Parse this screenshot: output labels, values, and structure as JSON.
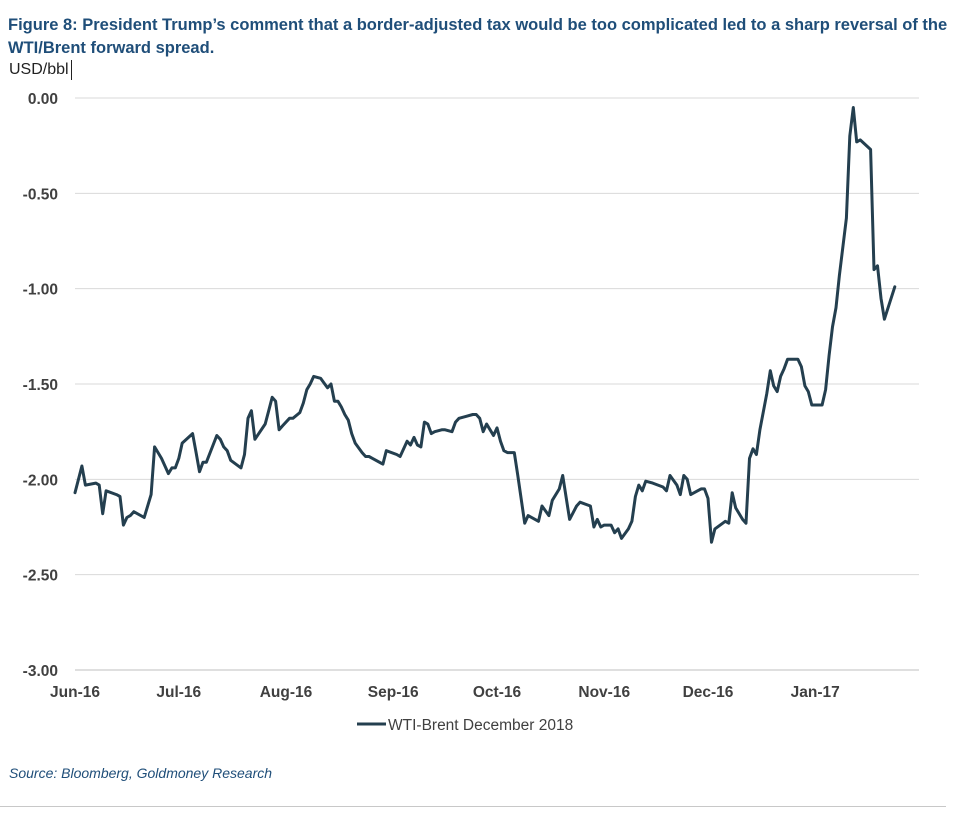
{
  "figure": {
    "title": "Figure 8: President Trump’s comment that a border-adjusted tax would be too complicated led to a sharp reversal of the WTI/Brent forward spread.",
    "source": "Source: Bloomberg, Goldmoney Research"
  },
  "chart_data": {
    "type": "line",
    "ylabel": "USD/bbl",
    "ylim": [
      -3.0,
      0.0
    ],
    "yticks": [
      "0.00",
      "-0.50",
      "-1.00",
      "-1.50",
      "-2.00",
      "-2.50",
      "-3.00"
    ],
    "ytick_values": [
      0.0,
      -0.5,
      -1.0,
      -1.5,
      -2.0,
      -2.5,
      -3.0
    ],
    "xlim": [
      "2016-06-01",
      "2017-01-31"
    ],
    "xticks": [
      "Jun-16",
      "Jul-16",
      "Aug-16",
      "Sep-16",
      "Oct-16",
      "Nov-16",
      "Dec-16",
      "Jan-17"
    ],
    "xtick_dates": [
      "2016-06-01",
      "2016-07-01",
      "2016-08-01",
      "2016-09-01",
      "2016-10-01",
      "2016-11-01",
      "2016-12-01",
      "2017-01-01"
    ],
    "grid": "horizontal",
    "legend": "bottom-center",
    "color": "#243f4f",
    "series": [
      {
        "name": "WTI-Brent December 2018",
        "points": [
          [
            "2016-06-01",
            -2.07
          ],
          [
            "2016-06-03",
            -1.93
          ],
          [
            "2016-06-04",
            -2.03
          ],
          [
            "2016-06-07",
            -2.02
          ],
          [
            "2016-06-08",
            -2.03
          ],
          [
            "2016-06-09",
            -2.18
          ],
          [
            "2016-06-10",
            -2.06
          ],
          [
            "2016-06-13",
            -2.08
          ],
          [
            "2016-06-14",
            -2.09
          ],
          [
            "2016-06-15",
            -2.24
          ],
          [
            "2016-06-16",
            -2.2
          ],
          [
            "2016-06-17",
            -2.19
          ],
          [
            "2016-06-18",
            -2.17
          ],
          [
            "2016-06-21",
            -2.2
          ],
          [
            "2016-06-23",
            -2.08
          ],
          [
            "2016-06-24",
            -1.83
          ],
          [
            "2016-06-26",
            -1.89
          ],
          [
            "2016-06-28",
            -1.97
          ],
          [
            "2016-06-29",
            -1.94
          ],
          [
            "2016-06-30",
            -1.94
          ],
          [
            "2016-07-01",
            -1.89
          ],
          [
            "2016-07-02",
            -1.81
          ],
          [
            "2016-07-05",
            -1.76
          ],
          [
            "2016-07-06",
            -1.86
          ],
          [
            "2016-07-07",
            -1.96
          ],
          [
            "2016-07-08",
            -1.91
          ],
          [
            "2016-07-09",
            -1.91
          ],
          [
            "2016-07-12",
            -1.77
          ],
          [
            "2016-07-13",
            -1.79
          ],
          [
            "2016-07-14",
            -1.83
          ],
          [
            "2016-07-15",
            -1.85
          ],
          [
            "2016-07-16",
            -1.9
          ],
          [
            "2016-07-19",
            -1.94
          ],
          [
            "2016-07-20",
            -1.87
          ],
          [
            "2016-07-21",
            -1.68
          ],
          [
            "2016-07-22",
            -1.64
          ],
          [
            "2016-07-23",
            -1.79
          ],
          [
            "2016-07-26",
            -1.71
          ],
          [
            "2016-07-27",
            -1.64
          ],
          [
            "2016-07-28",
            -1.57
          ],
          [
            "2016-07-29",
            -1.59
          ],
          [
            "2016-07-30",
            -1.74
          ],
          [
            "2016-07-31",
            -1.72
          ],
          [
            "2016-08-02",
            -1.68
          ],
          [
            "2016-08-03",
            -1.68
          ],
          [
            "2016-08-05",
            -1.65
          ],
          [
            "2016-08-06",
            -1.6
          ],
          [
            "2016-08-07",
            -1.53
          ],
          [
            "2016-08-08",
            -1.5
          ],
          [
            "2016-08-09",
            -1.46
          ],
          [
            "2016-08-11",
            -1.47
          ],
          [
            "2016-08-13",
            -1.52
          ],
          [
            "2016-08-14",
            -1.5
          ],
          [
            "2016-08-15",
            -1.59
          ],
          [
            "2016-08-16",
            -1.59
          ],
          [
            "2016-08-17",
            -1.62
          ],
          [
            "2016-08-18",
            -1.66
          ],
          [
            "2016-08-19",
            -1.69
          ],
          [
            "2016-08-20",
            -1.76
          ],
          [
            "2016-08-21",
            -1.81
          ],
          [
            "2016-08-23",
            -1.86
          ],
          [
            "2016-08-24",
            -1.88
          ],
          [
            "2016-08-25",
            -1.88
          ],
          [
            "2016-08-26",
            -1.89
          ],
          [
            "2016-08-29",
            -1.92
          ],
          [
            "2016-08-30",
            -1.85
          ],
          [
            "2016-09-02",
            -1.87
          ],
          [
            "2016-09-03",
            -1.88
          ],
          [
            "2016-09-05",
            -1.8
          ],
          [
            "2016-09-06",
            -1.82
          ],
          [
            "2016-09-07",
            -1.78
          ],
          [
            "2016-09-08",
            -1.82
          ],
          [
            "2016-09-09",
            -1.83
          ],
          [
            "2016-09-10",
            -1.7
          ],
          [
            "2016-09-11",
            -1.71
          ],
          [
            "2016-09-12",
            -1.76
          ],
          [
            "2016-09-13",
            -1.75
          ],
          [
            "2016-09-15",
            -1.74
          ],
          [
            "2016-09-16",
            -1.74
          ],
          [
            "2016-09-18",
            -1.75
          ],
          [
            "2016-09-19",
            -1.7
          ],
          [
            "2016-09-20",
            -1.68
          ],
          [
            "2016-09-22",
            -1.67
          ],
          [
            "2016-09-24",
            -1.66
          ],
          [
            "2016-09-25",
            -1.66
          ],
          [
            "2016-09-26",
            -1.68
          ],
          [
            "2016-09-27",
            -1.75
          ],
          [
            "2016-09-28",
            -1.71
          ],
          [
            "2016-09-29",
            -1.74
          ],
          [
            "2016-09-30",
            -1.77
          ],
          [
            "2016-10-01",
            -1.73
          ],
          [
            "2016-10-02",
            -1.8
          ],
          [
            "2016-10-03",
            -1.85
          ],
          [
            "2016-10-04",
            -1.86
          ],
          [
            "2016-10-06",
            -1.86
          ],
          [
            "2016-10-07",
            -1.98
          ],
          [
            "2016-10-09",
            -2.23
          ],
          [
            "2016-10-10",
            -2.19
          ],
          [
            "2016-10-13",
            -2.22
          ],
          [
            "2016-10-14",
            -2.14
          ],
          [
            "2016-10-16",
            -2.19
          ],
          [
            "2016-10-17",
            -2.11
          ],
          [
            "2016-10-19",
            -2.05
          ],
          [
            "2016-10-20",
            -1.98
          ],
          [
            "2016-10-22",
            -2.21
          ],
          [
            "2016-10-24",
            -2.14
          ],
          [
            "2016-10-25",
            -2.12
          ],
          [
            "2016-10-28",
            -2.14
          ],
          [
            "2016-10-29",
            -2.25
          ],
          [
            "2016-10-30",
            -2.21
          ],
          [
            "2016-10-31",
            -2.25
          ],
          [
            "2016-11-01",
            -2.24
          ],
          [
            "2016-11-03",
            -2.24
          ],
          [
            "2016-11-04",
            -2.28
          ],
          [
            "2016-11-05",
            -2.26
          ],
          [
            "2016-11-06",
            -2.31
          ],
          [
            "2016-11-08",
            -2.26
          ],
          [
            "2016-11-09",
            -2.22
          ],
          [
            "2016-11-10",
            -2.09
          ],
          [
            "2016-11-11",
            -2.03
          ],
          [
            "2016-11-12",
            -2.06
          ],
          [
            "2016-11-13",
            -2.01
          ],
          [
            "2016-11-15",
            -2.02
          ],
          [
            "2016-11-18",
            -2.04
          ],
          [
            "2016-11-19",
            -2.06
          ],
          [
            "2016-11-20",
            -1.98
          ],
          [
            "2016-11-22",
            -2.03
          ],
          [
            "2016-11-23",
            -2.08
          ],
          [
            "2016-11-24",
            -1.98
          ],
          [
            "2016-11-25",
            -2.0
          ],
          [
            "2016-11-26",
            -2.08
          ],
          [
            "2016-11-28",
            -2.06
          ],
          [
            "2016-11-29",
            -2.05
          ],
          [
            "2016-11-30",
            -2.05
          ],
          [
            "2016-12-01",
            -2.1
          ],
          [
            "2016-12-02",
            -2.33
          ],
          [
            "2016-12-03",
            -2.26
          ],
          [
            "2016-12-06",
            -2.22
          ],
          [
            "2016-12-07",
            -2.23
          ],
          [
            "2016-12-08",
            -2.07
          ],
          [
            "2016-12-09",
            -2.15
          ],
          [
            "2016-12-11",
            -2.21
          ],
          [
            "2016-12-12",
            -2.23
          ],
          [
            "2016-12-13",
            -1.89
          ],
          [
            "2016-12-14",
            -1.84
          ],
          [
            "2016-12-15",
            -1.87
          ],
          [
            "2016-12-16",
            -1.74
          ],
          [
            "2016-12-18",
            -1.55
          ],
          [
            "2016-12-19",
            -1.43
          ],
          [
            "2016-12-20",
            -1.51
          ],
          [
            "2016-12-21",
            -1.54
          ],
          [
            "2016-12-22",
            -1.46
          ],
          [
            "2016-12-23",
            -1.42
          ],
          [
            "2016-12-24",
            -1.37
          ],
          [
            "2016-12-27",
            -1.37
          ],
          [
            "2016-12-28",
            -1.41
          ],
          [
            "2016-12-29",
            -1.51
          ],
          [
            "2016-12-30",
            -1.54
          ],
          [
            "2016-12-31",
            -1.61
          ],
          [
            "2017-01-03",
            -1.61
          ],
          [
            "2017-01-04",
            -1.53
          ],
          [
            "2017-01-05",
            -1.35
          ],
          [
            "2017-01-06",
            -1.2
          ],
          [
            "2017-01-07",
            -1.1
          ],
          [
            "2017-01-08",
            -0.93
          ],
          [
            "2017-01-10",
            -0.63
          ],
          [
            "2017-01-11",
            -0.2
          ],
          [
            "2017-01-12",
            -0.05
          ],
          [
            "2017-01-13",
            -0.23
          ],
          [
            "2017-01-14",
            -0.22
          ],
          [
            "2017-01-17",
            -0.27
          ],
          [
            "2017-01-18",
            -0.9
          ],
          [
            "2017-01-19",
            -0.88
          ],
          [
            "2017-01-20",
            -1.05
          ],
          [
            "2017-01-21",
            -1.16
          ],
          [
            "2017-01-24",
            -0.99
          ]
        ]
      }
    ]
  }
}
